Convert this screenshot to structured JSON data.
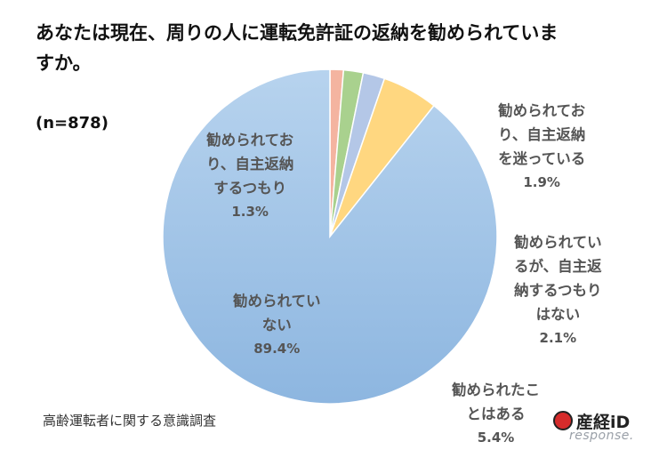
{
  "title": "あなたは現在、周りの人に運転免許証の返納を勧められていますか。",
  "sample_size": "(n=878)",
  "footer": "高齢運転者に関する意識調査",
  "brand": {
    "name": "産経iD",
    "watermark": "response."
  },
  "chart_data": {
    "type": "pie",
    "title": "あなたは現在、周りの人に運転免許証の返納を勧められていますか。",
    "slices": [
      {
        "label": "勧められており、自主返納するつもり",
        "value": 1.3,
        "display": "1.3%",
        "color": "#f4b4a0"
      },
      {
        "label": "勧められており、自主返納を迷っている",
        "value": 1.9,
        "display": "1.9%",
        "color": "#a9d18e"
      },
      {
        "label": "勧められているが、自主返納するつもりはない",
        "value": 2.1,
        "display": "2.1%",
        "color": "#b4c7e7"
      },
      {
        "label": "勧められたことはある",
        "value": 5.4,
        "display": "5.4%",
        "color": "#ffd780"
      },
      {
        "label": "勧められていない",
        "value": 89.4,
        "display": "89.4%",
        "color": "#9dc3e6"
      }
    ],
    "start_angle_deg": 0,
    "direction": "clockwise"
  },
  "labels": {
    "s0": "勧められてお\nり、自主返納\nするつもり",
    "s1": "勧められてお\nり、自主返納\nを迷っている",
    "s2": "勧められてい\nるが、自主返\n納するつもり\nはない",
    "s3": "勧められたこ\nとはある",
    "s4": "勧められてい\nない"
  }
}
